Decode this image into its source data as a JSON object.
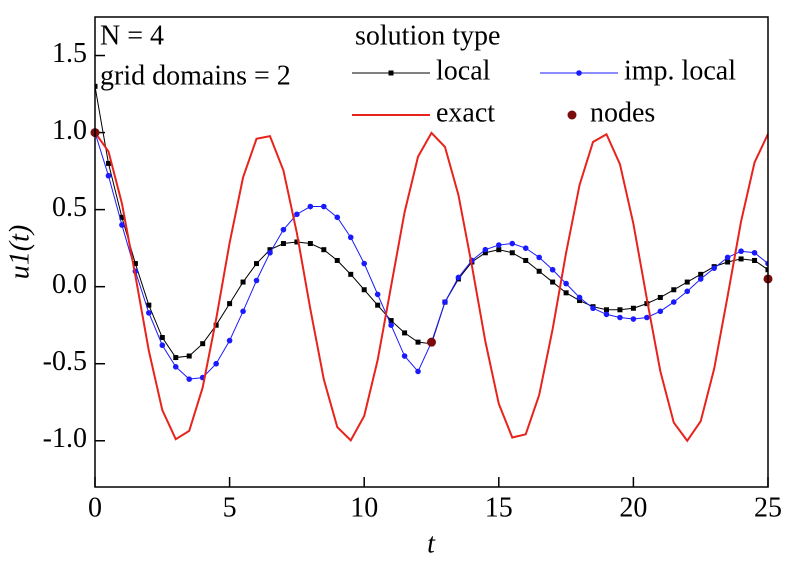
{
  "chart_data": {
    "type": "line",
    "xlabel": "t",
    "ylabel": "u1(t)",
    "annotations": [
      "N = 4",
      "grid domains = 2"
    ],
    "legend_title": "solution type",
    "xlim": [
      0,
      25
    ],
    "ylim": [
      -1.3,
      1.75
    ],
    "xticks": [
      0,
      5,
      10,
      15,
      20,
      25
    ],
    "yticks": [
      {
        "value": -1.0,
        "label": "-1.0"
      },
      {
        "value": -0.5,
        "label": "-0.5"
      },
      {
        "value": 0.0,
        "label": "0.0"
      },
      {
        "value": 0.5,
        "label": "0.5"
      },
      {
        "value": 1.0,
        "label": "1.0"
      },
      {
        "value": 1.5,
        "label": "1.5"
      }
    ],
    "x": [
      0,
      0.5,
      1,
      1.5,
      2,
      2.5,
      3,
      3.5,
      4,
      4.5,
      5,
      5.5,
      6,
      6.5,
      7,
      7.5,
      8,
      8.5,
      9,
      9.5,
      10,
      10.5,
      11,
      11.5,
      12,
      12.5,
      13,
      13.5,
      14,
      14.5,
      15,
      15.5,
      16,
      16.5,
      17,
      17.5,
      18,
      18.5,
      19,
      19.5,
      20,
      20.5,
      21,
      21.5,
      22,
      22.5,
      23,
      23.5,
      24,
      24.5,
      25
    ],
    "series": [
      {
        "name": "local",
        "color": "#000000",
        "marker": "square",
        "values": [
          1.3,
          0.8,
          0.45,
          0.15,
          -0.12,
          -0.33,
          -0.46,
          -0.45,
          -0.37,
          -0.25,
          -0.11,
          0.03,
          0.15,
          0.24,
          0.28,
          0.29,
          0.28,
          0.24,
          0.17,
          0.08,
          -0.02,
          -0.12,
          -0.22,
          -0.3,
          -0.36,
          -0.37,
          -0.1,
          0.05,
          0.16,
          0.22,
          0.24,
          0.22,
          0.17,
          0.1,
          0.03,
          -0.04,
          -0.09,
          -0.13,
          -0.15,
          -0.15,
          -0.14,
          -0.11,
          -0.07,
          -0.02,
          0.03,
          0.08,
          0.13,
          0.16,
          0.18,
          0.17,
          0.11
        ]
      },
      {
        "name": "imp. local",
        "color": "#1a1aff",
        "marker": "circle",
        "values": [
          1.0,
          0.72,
          0.4,
          0.1,
          -0.17,
          -0.38,
          -0.52,
          -0.6,
          -0.59,
          -0.5,
          -0.35,
          -0.16,
          0.04,
          0.22,
          0.37,
          0.47,
          0.52,
          0.52,
          0.45,
          0.32,
          0.15,
          -0.05,
          -0.25,
          -0.45,
          -0.55,
          -0.36,
          -0.1,
          0.06,
          0.17,
          0.24,
          0.27,
          0.28,
          0.25,
          0.19,
          0.11,
          0.02,
          -0.07,
          -0.14,
          -0.18,
          -0.2,
          -0.21,
          -0.2,
          -0.16,
          -0.1,
          -0.03,
          0.05,
          0.12,
          0.19,
          0.23,
          0.22,
          0.15
        ]
      },
      {
        "name": "exact",
        "color": "#e8231c",
        "marker": "none",
        "values": [
          1,
          0.878,
          0.54,
          0.071,
          -0.416,
          -0.801,
          -0.99,
          -0.936,
          -0.654,
          -0.211,
          0.284,
          0.709,
          0.96,
          0.977,
          0.754,
          0.347,
          -0.146,
          -0.602,
          -0.911,
          -0.997,
          -0.839,
          -0.476,
          0.004,
          0.483,
          0.844,
          0.998,
          0.907,
          0.595,
          0.137,
          -0.355,
          -0.76,
          -0.979,
          -0.958,
          -0.703,
          -0.275,
          0.22,
          0.66,
          0.939,
          0.989,
          0.795,
          0.408,
          -0.08,
          -0.548,
          -0.882,
          -1.0,
          -0.873,
          -0.533,
          -0.062,
          0.424,
          0.806,
          0.991
        ]
      },
      {
        "name": "nodes",
        "color": "#7a0c0c",
        "marker": "dot",
        "x": [
          0,
          12.5,
          25
        ],
        "values": [
          1.0,
          -0.36,
          0.05
        ]
      }
    ]
  }
}
